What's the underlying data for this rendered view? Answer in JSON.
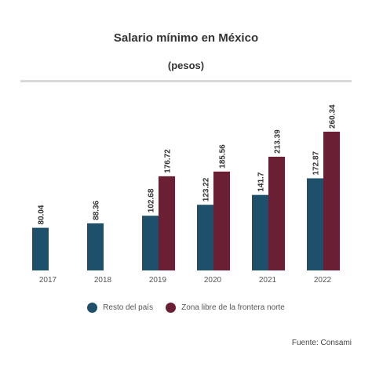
{
  "chart_data": {
    "type": "bar",
    "title": "Salario mínimo en México",
    "subtitle": "(pesos)",
    "categories": [
      "2017",
      "2018",
      "2019",
      "2020",
      "2021",
      "2022"
    ],
    "series": [
      {
        "name": "Resto del país",
        "color": "#1e4f6b",
        "values": [
          80.04,
          88.36,
          102.68,
          123.22,
          141.7,
          172.87
        ],
        "labels": [
          "80.04",
          "88.36",
          "102.68",
          "123.22",
          "141.7",
          "172.87"
        ]
      },
      {
        "name": "Zona libre de la frontera norte",
        "color": "#6b1f35",
        "values": [
          null,
          null,
          176.72,
          185.56,
          213.39,
          260.34
        ],
        "labels": [
          "",
          "",
          "176.72",
          "185.56",
          "213.39",
          "260.34"
        ]
      }
    ],
    "ylim": [
      0,
      260.34
    ],
    "legend": "bottom-center",
    "grid": false,
    "source": "Fuente: Consami"
  }
}
